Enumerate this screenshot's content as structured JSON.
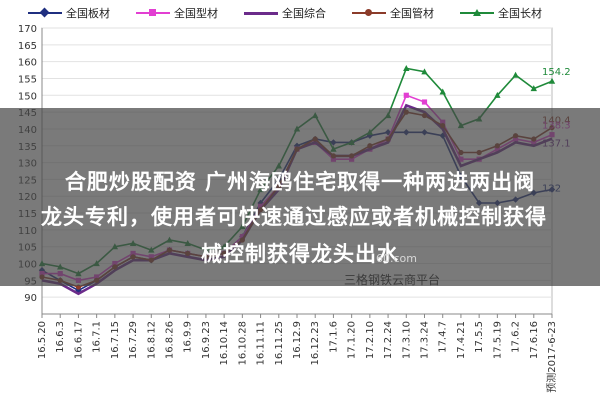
{
  "legend": [
    {
      "label": "全国板材",
      "color": "#1f2f80",
      "marker": "diamond"
    },
    {
      "label": "全国型材",
      "color": "#e23fd2",
      "marker": "square"
    },
    {
      "label": "全国综合",
      "color": "#6b2b8a",
      "marker": "none"
    },
    {
      "label": "全国管材",
      "color": "#8b3b2a",
      "marker": "circle"
    },
    {
      "label": "全国长材",
      "color": "#1f8a3a",
      "marker": "triangle"
    }
  ],
  "overlay": {
    "line1": "合肥炒股配资 广州海鸥住宅取得一种两进两出阀",
    "line2": "龙头专利，使用者可快速通过感应或者机械控制获得",
    "line3": "械控制获得龙头出水"
  },
  "watermark": {
    "url": "60.com",
    "name": "三格钢铁云商平台"
  },
  "chart_data": {
    "type": "line",
    "ylim": [
      85,
      170
    ],
    "yticks": [
      90,
      95,
      100,
      105,
      110,
      115,
      120,
      125,
      130,
      135,
      140,
      145,
      150,
      155,
      160,
      165,
      170
    ],
    "x": [
      "16.5.20",
      "16.6.3",
      "16.6.17",
      "16.7.1",
      "16.7.15",
      "16.7.29",
      "16.8.12",
      "16.8.26",
      "16.9.9",
      "16.9.23",
      "16.10.14",
      "16.10.28",
      "16.11.11",
      "16.11.25",
      "16.12.9",
      "16.12.23",
      "17.1.6",
      "17.1.20",
      "17.2.10",
      "17.2.24",
      "17.3.10",
      "17.3.24",
      "17.4.7",
      "17.4.21",
      "17.5.5",
      "17.5.19",
      "17.6.2",
      "17.6.16",
      "预测2017-6-23"
    ],
    "end_labels": [
      "154.2",
      "140.4",
      "138.3",
      "137.1",
      "122"
    ],
    "series": [
      {
        "name": "全国板材",
        "values": [
          98,
          95,
          92,
          95,
          99,
          102,
          101,
          104,
          103,
          102,
          103,
          108,
          118,
          125,
          135,
          137,
          136,
          136,
          138,
          139,
          139,
          139,
          138,
          126,
          118,
          118,
          119,
          121,
          122
        ]
      },
      {
        "name": "全国型材",
        "values": [
          97,
          97,
          95,
          96,
          100,
          103,
          102,
          104,
          103,
          102,
          103,
          108,
          117,
          123,
          134,
          136,
          131,
          131,
          134,
          137,
          150,
          148,
          142,
          131,
          131,
          134,
          137,
          136,
          138.3
        ]
      },
      {
        "name": "全国综合",
        "values": [
          95,
          94,
          91,
          94,
          98,
          101,
          101,
          103,
          102,
          101,
          102,
          107,
          116,
          122,
          134,
          136,
          132,
          132,
          134,
          136,
          147,
          145,
          140,
          129,
          131,
          133,
          136,
          135,
          137.1
        ]
      },
      {
        "name": "全国管材",
        "values": [
          96,
          95,
          93,
          95,
          99,
          102,
          101,
          104,
          103,
          102,
          103,
          107,
          116,
          123,
          134,
          137,
          132,
          132,
          135,
          137,
          145,
          144,
          141,
          133,
          133,
          135,
          138,
          137,
          140.4
        ]
      },
      {
        "name": "全国长材",
        "values": [
          100,
          99,
          97,
          100,
          105,
          106,
          104,
          107,
          106,
          104,
          105,
          111,
          122,
          129,
          140,
          144,
          134,
          136,
          139,
          144,
          158,
          157,
          151,
          141,
          143,
          150,
          156,
          152,
          154.2
        ]
      }
    ]
  }
}
